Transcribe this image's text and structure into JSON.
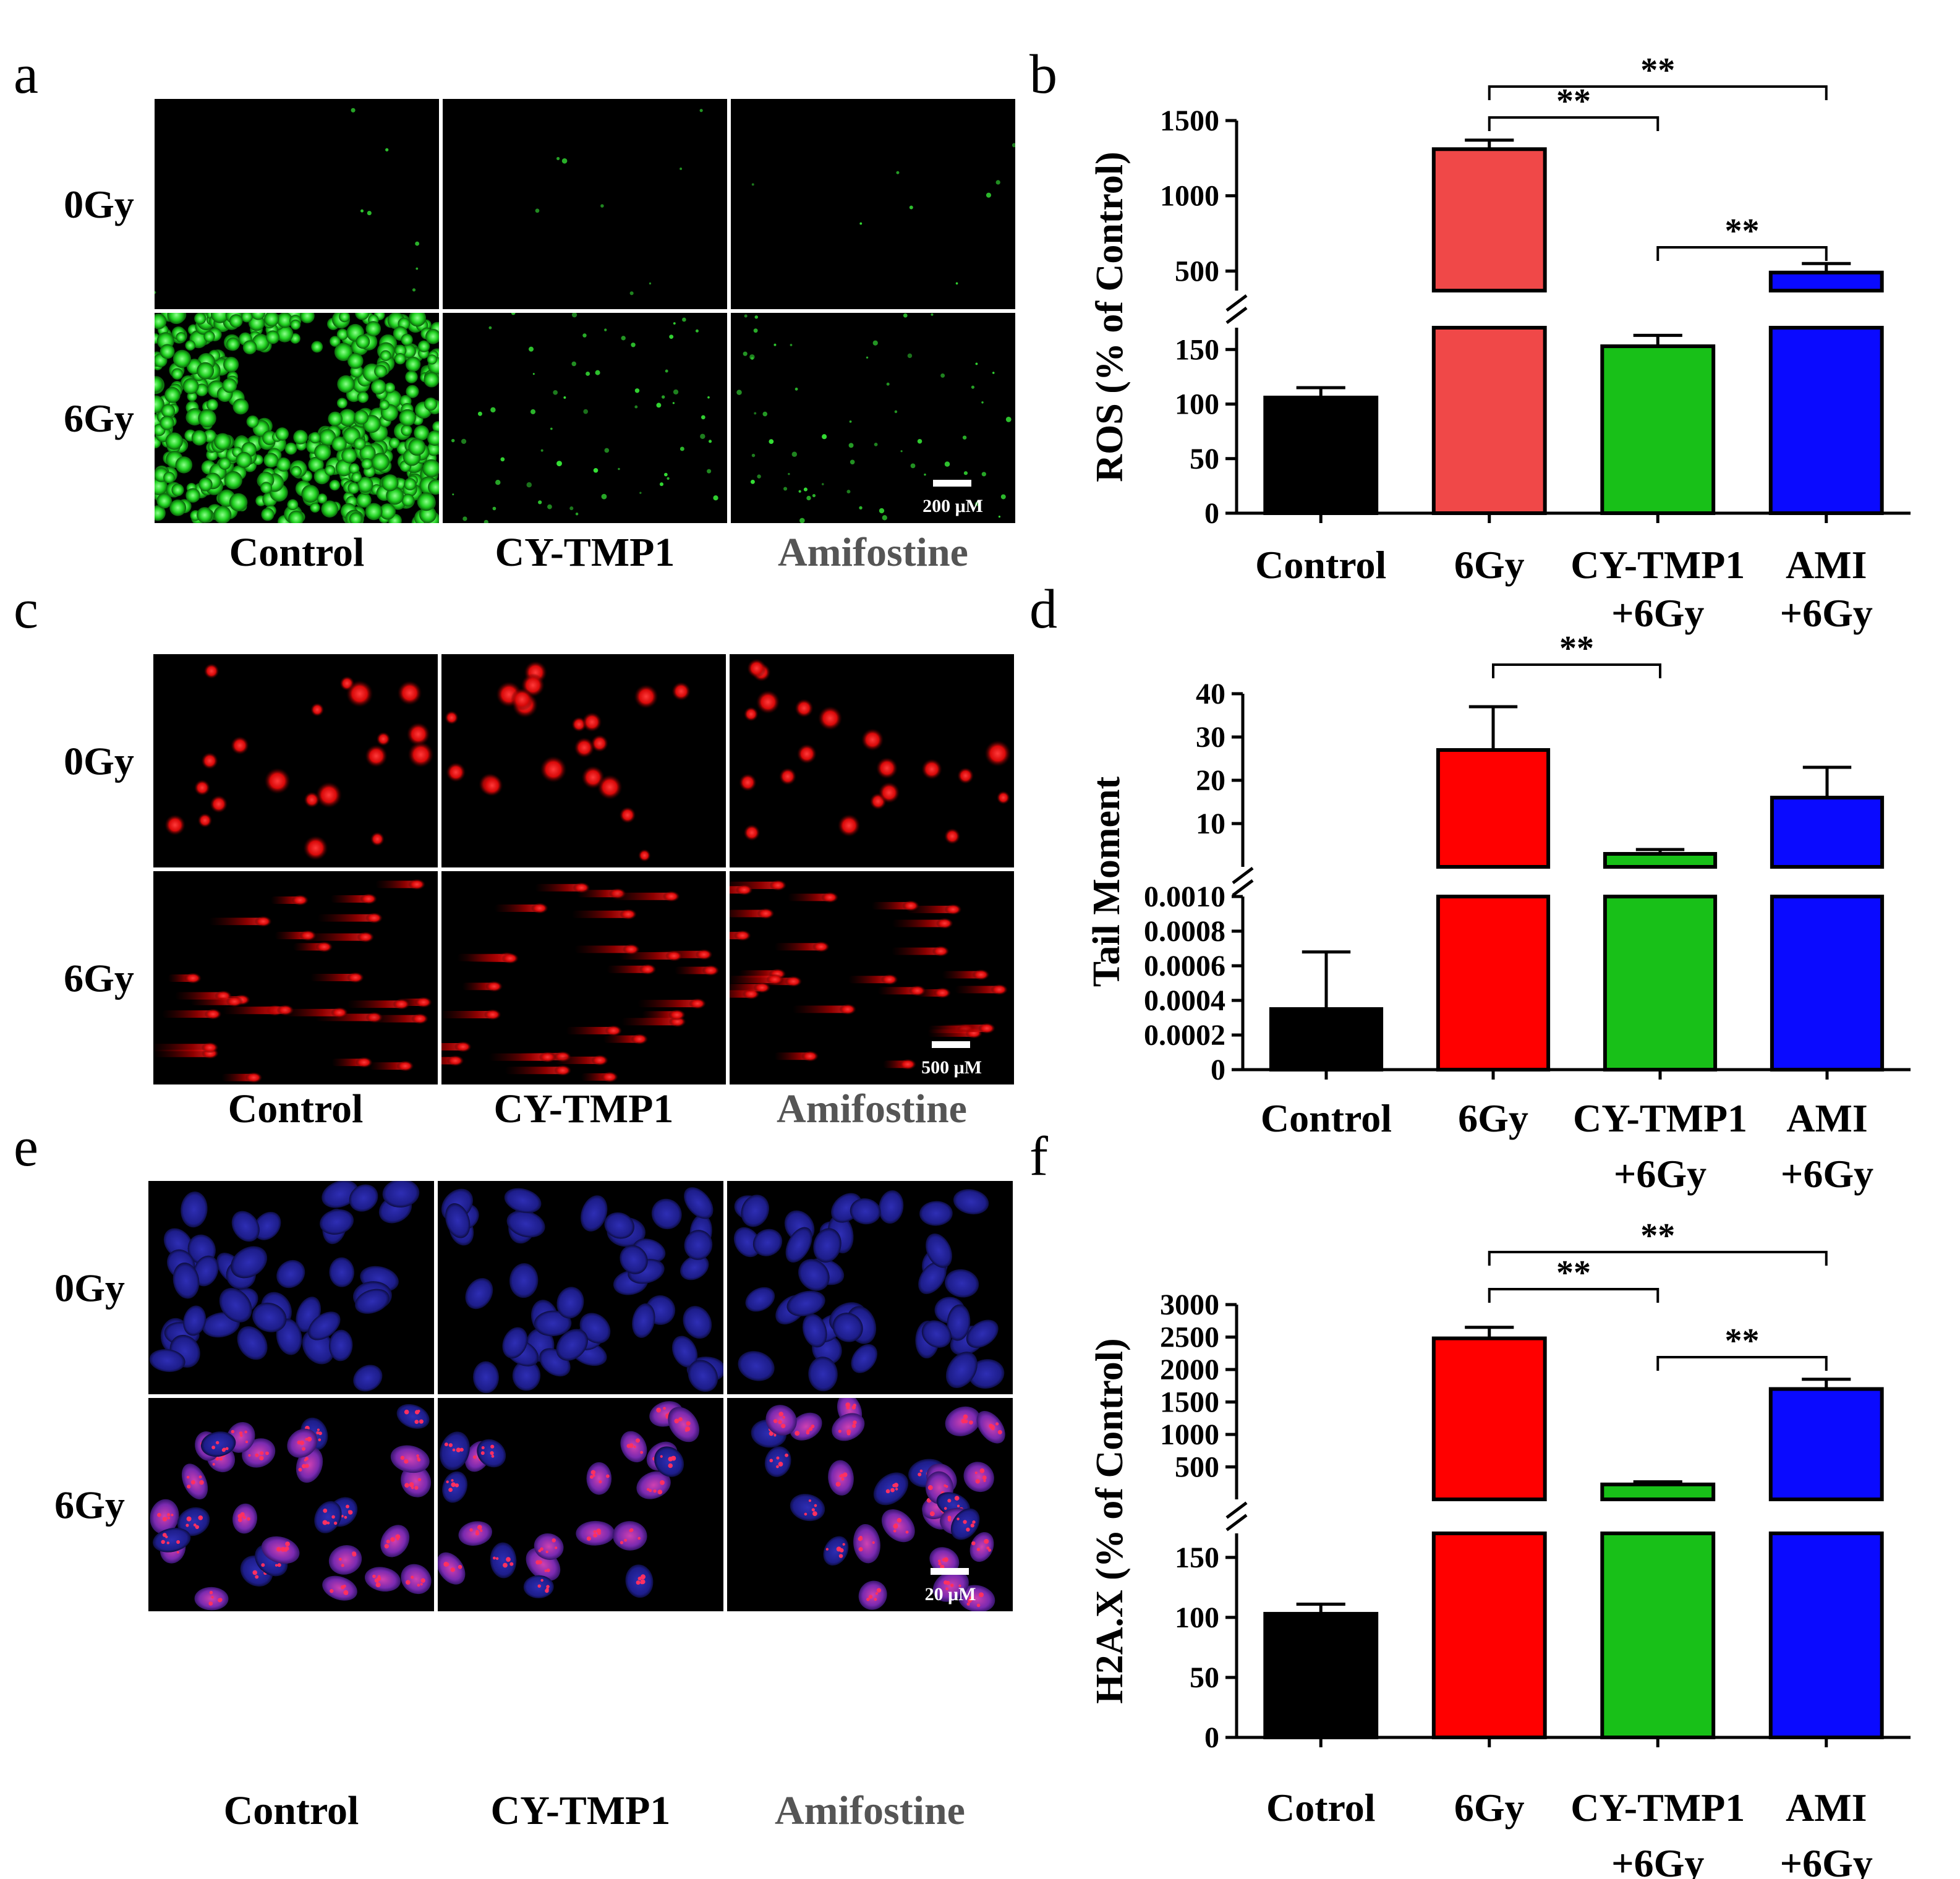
{
  "panels": {
    "a": {
      "letter": "a",
      "rows": [
        "0Gy",
        "6Gy"
      ],
      "cols": [
        "Control",
        "CY-TMP1",
        "Amifostine"
      ],
      "scale": "200 μM",
      "color": "#2ee62e"
    },
    "c": {
      "letter": "c",
      "rows": [
        "0Gy",
        "6Gy"
      ],
      "cols": [
        "Control",
        "CY-TMP1",
        "Amifostine"
      ],
      "scale": "500 μM",
      "color": "#ff1a1a"
    },
    "e": {
      "letter": "e",
      "rows": [
        "0Gy",
        "6Gy"
      ],
      "cols": [
        "Control",
        "CY-TMP1",
        "Amifostine"
      ],
      "scale": "20 μM",
      "color": "#2b2ba8"
    }
  },
  "chart_data": [
    {
      "panel": "b",
      "type": "bar",
      "categories": [
        "Control",
        "6Gy",
        "CY-TMP1 +6Gy",
        "AMI +6Gy"
      ],
      "category_lines": [
        [
          "Control"
        ],
        [
          "6Gy"
        ],
        [
          "CY-TMP1",
          "+6Gy"
        ],
        [
          "AMI",
          "+6Gy"
        ]
      ],
      "values": [
        106,
        1310,
        153,
        490
      ],
      "errors": [
        9,
        60,
        10,
        60
      ],
      "colors": [
        "#000000",
        "#f04848",
        "#18c018",
        "#0a0aff"
      ],
      "ylabel": "ROS (% of Control)",
      "axis_break": {
        "lower": [
          0,
          170
        ],
        "upper": [
          370,
          1500
        ]
      },
      "yticks_lower": [
        "0",
        "50",
        "100",
        "150"
      ],
      "yticks_upper": [
        "500",
        "1000",
        "1500"
      ],
      "significance": [
        {
          "from": 1,
          "to": 2,
          "label": "**"
        },
        {
          "from": 1,
          "to": 3,
          "label": "**"
        },
        {
          "from": 2,
          "to": 3,
          "label": "**"
        }
      ]
    },
    {
      "panel": "d",
      "type": "bar",
      "categories": [
        "Control",
        "6Gy",
        "CY-TMP1 +6Gy",
        "AMI +6Gy"
      ],
      "category_lines": [
        [
          "Control"
        ],
        [
          "6Gy"
        ],
        [
          "CY-TMP1"
        ],
        [
          "AMI"
        ]
      ],
      "category_sublines": [
        "",
        "",
        "+6Gy",
        "+6Gy"
      ],
      "values": [
        0.00035,
        27,
        3,
        16
      ],
      "errors": [
        0.00033,
        10,
        1,
        7
      ],
      "colors": [
        "#000000",
        "#ff0000",
        "#18c018",
        "#0a0aff"
      ],
      "ylabel": "Tail Moment",
      "axis_break": {
        "lower": [
          0,
          0.001
        ],
        "upper": [
          0,
          40
        ]
      },
      "yticks_lower": [
        "0",
        "0.0002",
        "0.0004",
        "0.0006",
        "0.0008",
        "0.0010"
      ],
      "yticks_upper": [
        "10",
        "20",
        "30",
        "40"
      ],
      "significance": [
        {
          "from": 1,
          "to": 2,
          "label": "**"
        }
      ]
    },
    {
      "panel": "f",
      "type": "bar",
      "categories": [
        "Cotrol",
        "6Gy",
        "CY-TMP1 +6Gy",
        "AMI +6Gy"
      ],
      "category_lines": [
        [
          "Cotrol"
        ],
        [
          "6Gy"
        ],
        [
          "CY-TMP1"
        ],
        [
          "AMI"
        ]
      ],
      "category_sublines": [
        "",
        "",
        "+6Gy",
        "+6Gy"
      ],
      "values": [
        103,
        2480,
        230,
        1700
      ],
      "errors": [
        8,
        170,
        40,
        150
      ],
      "colors": [
        "#000000",
        "#ff0000",
        "#18c018",
        "#0a0aff"
      ],
      "ylabel": "H2A.X (% of Control)",
      "axis_break": {
        "lower": [
          0,
          170
        ],
        "upper": [
          0,
          3000
        ]
      },
      "yticks_lower": [
        "0",
        "50",
        "100",
        "150"
      ],
      "yticks_upper": [
        "500",
        "1000",
        "1500",
        "2000",
        "2500",
        "3000"
      ],
      "significance": [
        {
          "from": 1,
          "to": 2,
          "label": "**"
        },
        {
          "from": 1,
          "to": 3,
          "label": "**"
        },
        {
          "from": 2,
          "to": 3,
          "label": "**"
        }
      ]
    }
  ]
}
